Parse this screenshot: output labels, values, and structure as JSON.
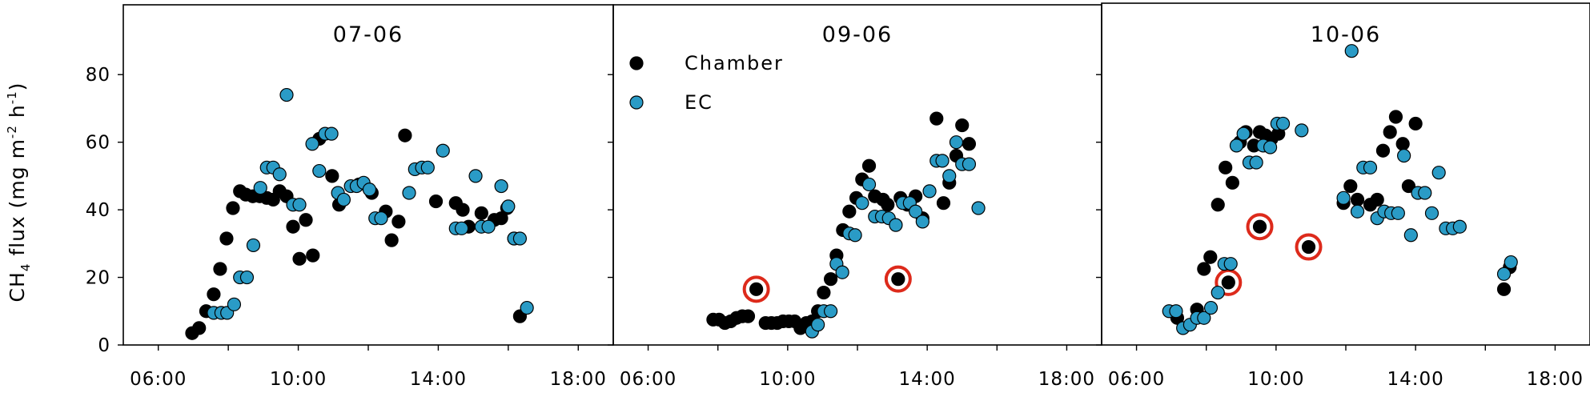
{
  "figure": {
    "ylabel": {
      "main": "CH",
      "sub": "4",
      "rest": " flux (mg m",
      "exp1": "-2",
      "mid": " h",
      "exp2": "-1",
      "close": ")"
    }
  },
  "colors": {
    "chamber": "#000000",
    "ec": "#2a9bc6",
    "circle": "#dd2a1b",
    "axis": "#000000"
  },
  "chart_data": [
    {
      "type": "scatter",
      "title": "07-06",
      "xlabel": "",
      "ylabel": "CH4 flux (mg m-2 h-1)",
      "xlim": [
        "05:00",
        "19:00"
      ],
      "ylim": [
        0,
        90
      ],
      "xticks": [
        "06:00",
        "10:00",
        "14:00",
        "18:00"
      ],
      "yticks": [
        0,
        20,
        40,
        60,
        80
      ],
      "series": [
        {
          "name": "Chamber",
          "color": "#000000",
          "points": [
            [
              "06:58",
              3.5
            ],
            [
              "07:10",
              5
            ],
            [
              "07:22",
              10
            ],
            [
              "07:35",
              15
            ],
            [
              "07:46",
              22.5
            ],
            [
              "07:57",
              31.5
            ],
            [
              "08:08",
              40.5
            ],
            [
              "08:20",
              45.5
            ],
            [
              "08:30",
              44.5
            ],
            [
              "08:42",
              44
            ],
            [
              "08:54",
              44
            ],
            [
              "09:06",
              43.5
            ],
            [
              "09:17",
              43
            ],
            [
              "09:28",
              45.5
            ],
            [
              "09:40",
              44
            ],
            [
              "09:51",
              35
            ],
            [
              "10:02",
              25.5
            ],
            [
              "10:13",
              37
            ],
            [
              "10:25",
              26.5
            ],
            [
              "10:36",
              61
            ],
            [
              "10:58",
              50
            ],
            [
              "11:10",
              41.5
            ],
            [
              "11:44",
              47.5
            ],
            [
              "12:06",
              45
            ],
            [
              "12:30",
              39.5
            ],
            [
              "12:40",
              31
            ],
            [
              "12:52",
              36.5
            ],
            [
              "13:03",
              62
            ],
            [
              "13:56",
              42.5
            ],
            [
              "14:30",
              42
            ],
            [
              "14:42",
              40
            ],
            [
              "14:52",
              35
            ],
            [
              "15:14",
              39
            ],
            [
              "15:36",
              37
            ],
            [
              "15:48",
              37.5
            ],
            [
              "15:58",
              40.5
            ],
            [
              "16:10",
              31.5
            ],
            [
              "16:20",
              8.5
            ]
          ]
        },
        {
          "name": "EC",
          "color": "#2a9bc6",
          "points": [
            [
              "07:35",
              9.5
            ],
            [
              "07:48",
              9.5
            ],
            [
              "07:58",
              9.5
            ],
            [
              "08:10",
              12
            ],
            [
              "08:20",
              20
            ],
            [
              "08:32",
              20
            ],
            [
              "08:43",
              29.5
            ],
            [
              "08:55",
              46.5
            ],
            [
              "09:06",
              52.5
            ],
            [
              "09:17",
              52.5
            ],
            [
              "09:28",
              50.5
            ],
            [
              "09:40",
              74
            ],
            [
              "09:51",
              41.5
            ],
            [
              "10:02",
              41.5
            ],
            [
              "10:24",
              59.5
            ],
            [
              "10:46",
              62.5
            ],
            [
              "10:57",
              62.5
            ],
            [
              "10:36",
              51.5
            ],
            [
              "11:08",
              45
            ],
            [
              "11:18",
              43
            ],
            [
              "11:30",
              47
            ],
            [
              "11:40",
              47
            ],
            [
              "11:52",
              48
            ],
            [
              "12:02",
              46
            ],
            [
              "12:12",
              37.5
            ],
            [
              "12:22",
              37.5
            ],
            [
              "13:10",
              45
            ],
            [
              "13:20",
              52
            ],
            [
              "13:32",
              52.5
            ],
            [
              "13:42",
              52.5
            ],
            [
              "14:08",
              57.5
            ],
            [
              "14:30",
              34.5
            ],
            [
              "14:40",
              34.5
            ],
            [
              "15:04",
              50
            ],
            [
              "15:14",
              35
            ],
            [
              "15:26",
              35
            ],
            [
              "15:48",
              47
            ],
            [
              "16:00",
              41
            ],
            [
              "16:10",
              31.5
            ],
            [
              "16:20",
              31.5
            ],
            [
              "16:32",
              11
            ]
          ]
        }
      ],
      "highlighted_chamber_points": []
    },
    {
      "type": "scatter",
      "title": "09-06",
      "xlabel": "",
      "ylabel": "",
      "xlim": [
        "05:00",
        "19:00"
      ],
      "ylim": [
        0,
        90
      ],
      "xticks": [
        "06:00",
        "10:00",
        "14:00",
        "18:00"
      ],
      "yticks": [
        0,
        20,
        40,
        60,
        80
      ],
      "legend": {
        "placement": "upper-left",
        "entries": [
          {
            "label": "Chamber",
            "series": 0
          },
          {
            "label": "EC",
            "series": 1
          }
        ]
      },
      "series": [
        {
          "name": "Chamber",
          "color": "#000000",
          "points": [
            [
              "07:52",
              7.5
            ],
            [
              "08:02",
              7.5
            ],
            [
              "08:12",
              6.5
            ],
            [
              "08:22",
              7
            ],
            [
              "08:32",
              8
            ],
            [
              "08:42",
              8.5
            ],
            [
              "08:52",
              8.5
            ],
            [
              "09:06",
              16.5
            ],
            [
              "09:22",
              6.5
            ],
            [
              "09:32",
              6.5
            ],
            [
              "09:42",
              6.5
            ],
            [
              "09:52",
              7
            ],
            [
              "10:02",
              7
            ],
            [
              "10:12",
              7
            ],
            [
              "10:22",
              5
            ],
            [
              "10:32",
              6.5
            ],
            [
              "10:42",
              7
            ],
            [
              "10:52",
              10
            ],
            [
              "11:02",
              15.5
            ],
            [
              "11:14",
              19.5
            ],
            [
              "11:24",
              26.5
            ],
            [
              "11:35",
              34
            ],
            [
              "11:46",
              39.5
            ],
            [
              "11:58",
              43.5
            ],
            [
              "12:08",
              49
            ],
            [
              "12:20",
              53
            ],
            [
              "12:30",
              44
            ],
            [
              "12:44",
              43
            ],
            [
              "13:10",
              19.5
            ],
            [
              "12:52",
              41.5
            ],
            [
              "13:14",
              43.5
            ],
            [
              "13:26",
              41.5
            ],
            [
              "13:40",
              44
            ],
            [
              "13:52",
              37.5
            ],
            [
              "14:16",
              67
            ],
            [
              "14:28",
              42
            ],
            [
              "14:38",
              48
            ],
            [
              "14:50",
              56
            ],
            [
              "15:00",
              65
            ],
            [
              "15:12",
              59.5
            ]
          ]
        },
        {
          "name": "EC",
          "color": "#2a9bc6",
          "points": [
            [
              "10:42",
              4
            ],
            [
              "10:52",
              6
            ],
            [
              "11:02",
              10
            ],
            [
              "11:14",
              10
            ],
            [
              "11:24",
              24
            ],
            [
              "11:34",
              21.5
            ],
            [
              "11:46",
              33
            ],
            [
              "11:56",
              32.5
            ],
            [
              "12:08",
              42
            ],
            [
              "12:20",
              47.5
            ],
            [
              "12:30",
              38
            ],
            [
              "12:42",
              38
            ],
            [
              "12:54",
              37.5
            ],
            [
              "13:06",
              35.5
            ],
            [
              "13:18",
              42
            ],
            [
              "13:30",
              42
            ],
            [
              "13:40",
              39.5
            ],
            [
              "13:52",
              36.5
            ],
            [
              "14:04",
              45.5
            ],
            [
              "14:16",
              54.5
            ],
            [
              "14:26",
              54.5
            ],
            [
              "14:38",
              50
            ],
            [
              "14:50",
              60
            ],
            [
              "15:00",
              53.5
            ],
            [
              "15:12",
              53.5
            ],
            [
              "15:28",
              40.5
            ]
          ]
        }
      ],
      "highlighted_chamber_points": [
        [
          "09:06",
          16.5
        ],
        [
          "13:10",
          19.5
        ]
      ]
    },
    {
      "type": "scatter",
      "title": "10-06",
      "xlabel": "",
      "ylabel": "",
      "xlim": [
        "05:00",
        "19:00"
      ],
      "ylim": [
        0,
        90
      ],
      "xticks": [
        "06:00",
        "10:00",
        "14:00",
        "18:00"
      ],
      "yticks": [
        0,
        20,
        40,
        60,
        80
      ],
      "series": [
        {
          "name": "Chamber",
          "color": "#000000",
          "points": [
            [
              "07:10",
              8
            ],
            [
              "07:44",
              10.5
            ],
            [
              "07:56",
              22.5
            ],
            [
              "08:07",
              26
            ],
            [
              "08:20",
              41.5
            ],
            [
              "08:33",
              52.5
            ],
            [
              "08:45",
              48
            ],
            [
              "08:58",
              60
            ],
            [
              "09:08",
              63
            ],
            [
              "09:22",
              59
            ],
            [
              "09:32",
              63
            ],
            [
              "09:42",
              62
            ],
            [
              "09:52",
              61
            ],
            [
              "10:04",
              62.5
            ],
            [
              "08:38",
              18.5
            ],
            [
              "09:32",
              35
            ],
            [
              "10:56",
              29
            ],
            [
              "11:56",
              42
            ],
            [
              "12:08",
              47
            ],
            [
              "12:20",
              43
            ],
            [
              "12:42",
              41.5
            ],
            [
              "12:54",
              43
            ],
            [
              "13:04",
              57.5
            ],
            [
              "13:16",
              63
            ],
            [
              "13:26",
              67.5
            ],
            [
              "13:38",
              59.5
            ],
            [
              "13:48",
              47
            ],
            [
              "14:00",
              65.5
            ],
            [
              "16:32",
              16.5
            ],
            [
              "16:42",
              23
            ]
          ]
        },
        {
          "name": "EC",
          "color": "#2a9bc6",
          "points": [
            [
              "06:56",
              10
            ],
            [
              "07:08",
              10
            ],
            [
              "07:20",
              5
            ],
            [
              "07:32",
              6
            ],
            [
              "07:44",
              8
            ],
            [
              "07:56",
              8
            ],
            [
              "08:08",
              11
            ],
            [
              "08:20",
              15.5
            ],
            [
              "08:31",
              24
            ],
            [
              "08:42",
              24
            ],
            [
              "08:52",
              59
            ],
            [
              "09:04",
              62.5
            ],
            [
              "09:14",
              54
            ],
            [
              "09:26",
              54
            ],
            [
              "09:38",
              59
            ],
            [
              "09:50",
              58.5
            ],
            [
              "10:02",
              65.5
            ],
            [
              "10:12",
              65.5
            ],
            [
              "10:44",
              63.5
            ],
            [
              "11:56",
              43.5
            ],
            [
              "12:10",
              87
            ],
            [
              "12:20",
              39.5
            ],
            [
              "12:30",
              52.5
            ],
            [
              "12:42",
              52.5
            ],
            [
              "12:54",
              37.5
            ],
            [
              "13:06",
              39.5
            ],
            [
              "13:18",
              39
            ],
            [
              "13:30",
              39
            ],
            [
              "13:40",
              56
            ],
            [
              "13:52",
              32.5
            ],
            [
              "14:04",
              45
            ],
            [
              "14:16",
              45
            ],
            [
              "14:28",
              39
            ],
            [
              "14:40",
              51
            ],
            [
              "14:52",
              34.5
            ],
            [
              "15:04",
              34.5
            ],
            [
              "15:16",
              35
            ],
            [
              "16:32",
              21
            ],
            [
              "16:44",
              24.5
            ]
          ]
        }
      ],
      "highlighted_chamber_points": [
        [
          "08:38",
          18.5
        ],
        [
          "09:32",
          35
        ],
        [
          "10:56",
          29
        ]
      ]
    }
  ]
}
